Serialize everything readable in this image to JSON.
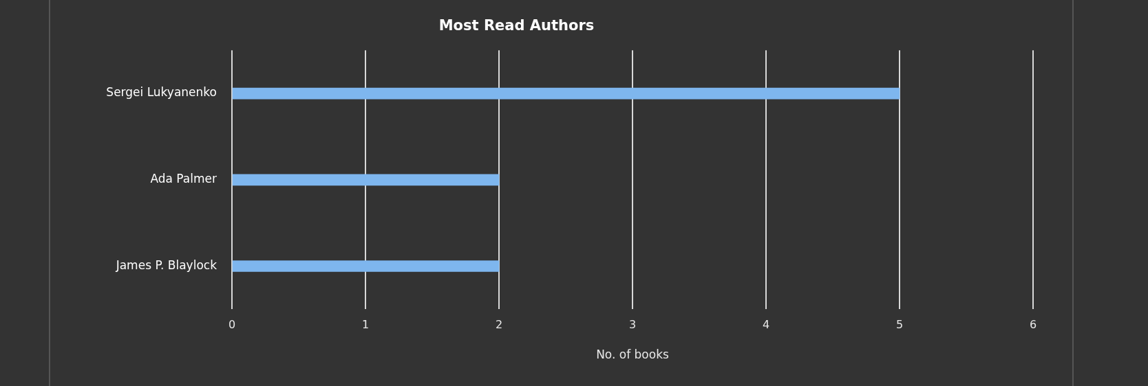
{
  "chart_data": {
    "type": "bar",
    "orientation": "horizontal",
    "title": "Most Read Authors",
    "xlabel": "No. of books",
    "categories": [
      "Sergei Lukyanenko",
      "Ada Palmer",
      "James P. Blaylock"
    ],
    "values": [
      5,
      2,
      2
    ],
    "color": "#7eb6ee",
    "xlim": [
      0,
      6
    ],
    "xticks": [
      0,
      1,
      2,
      3,
      4,
      5,
      6
    ],
    "grid": "x",
    "legend": false
  }
}
